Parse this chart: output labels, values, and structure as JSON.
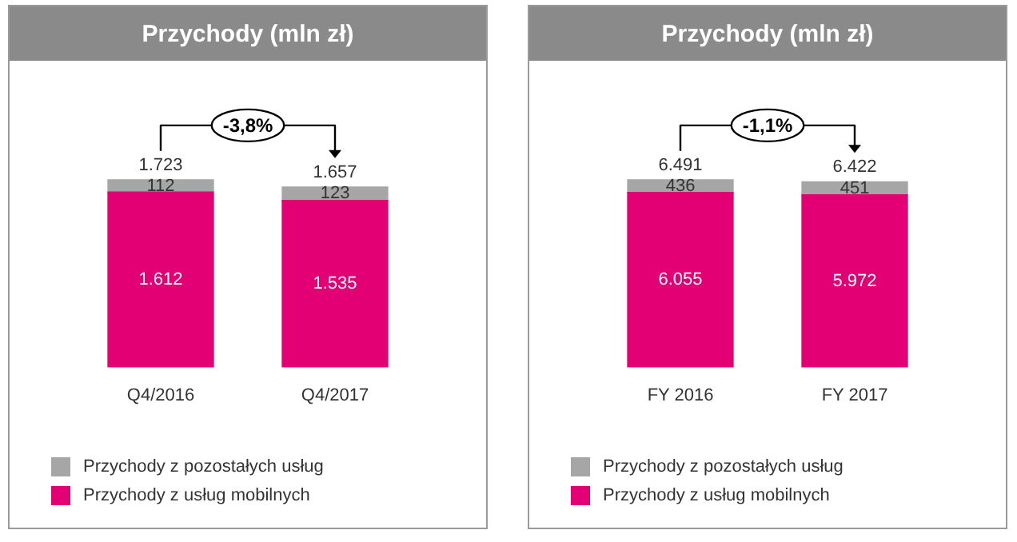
{
  "chart_data": [
    {
      "type": "bar",
      "title": "Przychody (mln zł)",
      "categories": [
        "Q4/2016",
        "Q4/2017"
      ],
      "stacked": true,
      "legend": "bottom left",
      "annotations": [
        "-3,8%"
      ],
      "totals": [
        "1.723",
        "1.657"
      ],
      "series": [
        {
          "name": "Przychody z usług mobilnych",
          "color": "#e20074",
          "values": [
            1612,
            1535
          ],
          "value_labels": [
            "1.612",
            "1.535"
          ]
        },
        {
          "name": "Przychody z pozostałych usług",
          "color": "#a6a6a6",
          "values": [
            112,
            123
          ],
          "value_labels": [
            "112",
            "123"
          ]
        }
      ]
    },
    {
      "type": "bar",
      "title": "Przychody (mln zł)",
      "categories": [
        "FY 2016",
        "FY 2017"
      ],
      "stacked": true,
      "legend": "bottom left",
      "annotations": [
        "-1,1%"
      ],
      "totals": [
        "6.491",
        "6.422"
      ],
      "series": [
        {
          "name": "Przychody z usług mobilnych",
          "color": "#e20074",
          "values": [
            6055,
            5972
          ],
          "value_labels": [
            "6.055",
            "5.972"
          ]
        },
        {
          "name": "Przychody z pozostałych usług",
          "color": "#a6a6a6",
          "values": [
            436,
            451
          ],
          "value_labels": [
            "436",
            "451"
          ]
        }
      ]
    }
  ]
}
